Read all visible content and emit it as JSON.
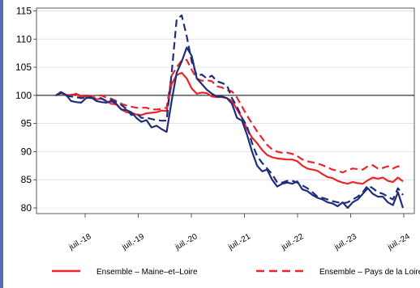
{
  "chart_data": {
    "type": "line",
    "title": "",
    "xlabel": "",
    "ylabel": "",
    "ylim": [
      79,
      115.5
    ],
    "yticks": [
      80,
      85,
      90,
      95,
      100,
      105,
      110,
      115
    ],
    "reference_line": 100,
    "xticks": [
      "juil.-18",
      "juil.-19",
      "juil.-20",
      "juil.-21",
      "juil.-22",
      "juil.-23",
      "juil.-24"
    ],
    "legend_placement": "bottom",
    "x_unit": "months since 2017-09 (monthly index)",
    "series": [
      {
        "name": "Ensemble - Maine-et-Loire",
        "color": "#e8262b",
        "style": "solid",
        "points": [
          [
            0,
            100
          ],
          [
            1,
            100.4
          ],
          [
            2,
            100.1
          ],
          [
            3,
            100.0
          ],
          [
            4,
            100.3
          ],
          [
            5,
            99.7
          ],
          [
            6,
            99.8
          ],
          [
            7,
            99.6
          ],
          [
            8,
            99.3
          ],
          [
            9,
            99.4
          ],
          [
            10,
            99.0
          ],
          [
            11,
            98.5
          ],
          [
            12,
            98.4
          ],
          [
            13,
            97.5
          ],
          [
            14,
            97.0
          ],
          [
            15,
            96.9
          ],
          [
            16,
            96.6
          ],
          [
            17,
            96.5
          ],
          [
            18,
            96.8
          ],
          [
            19,
            96.9
          ],
          [
            20,
            97.0
          ],
          [
            21,
            97.3
          ],
          [
            22,
            97.2
          ],
          [
            23,
            102.0
          ],
          [
            24,
            103.6
          ],
          [
            25,
            104.0
          ],
          [
            26,
            103.0
          ],
          [
            27,
            101.2
          ],
          [
            28,
            100.3
          ],
          [
            29,
            100.5
          ],
          [
            30,
            100.4
          ],
          [
            31,
            99.8
          ],
          [
            32,
            99.7
          ],
          [
            33,
            99.7
          ],
          [
            34,
            99.5
          ],
          [
            35,
            99.0
          ],
          [
            36,
            97.5
          ],
          [
            37,
            96.0
          ],
          [
            38,
            94.0
          ],
          [
            39,
            92.5
          ],
          [
            40,
            91.5
          ],
          [
            41,
            90.3
          ],
          [
            42,
            89.4
          ],
          [
            43,
            89.0
          ],
          [
            44,
            88.8
          ],
          [
            45,
            88.7
          ],
          [
            46,
            88.6
          ],
          [
            47,
            88.6
          ],
          [
            48,
            88.3
          ],
          [
            49,
            87.5
          ],
          [
            50,
            87.0
          ],
          [
            51,
            86.8
          ],
          [
            52,
            86.6
          ],
          [
            53,
            86.0
          ],
          [
            54,
            85.5
          ],
          [
            55,
            85.3
          ],
          [
            56,
            84.8
          ],
          [
            57,
            84.5
          ],
          [
            58,
            84.3
          ],
          [
            59,
            84.6
          ],
          [
            60,
            84.4
          ],
          [
            61,
            84.3
          ],
          [
            62,
            84.9
          ],
          [
            63,
            85.4
          ],
          [
            64,
            85.2
          ],
          [
            65,
            85.4
          ],
          [
            66,
            84.8
          ],
          [
            67,
            84.6
          ],
          [
            68,
            85.4
          ],
          [
            69,
            84.7
          ]
        ]
      },
      {
        "name": "Ensemble - Pays de la Loire",
        "color": "#e8262b",
        "style": "dashed",
        "points": [
          [
            0,
            100
          ],
          [
            1,
            100.5
          ],
          [
            2,
            100.0
          ],
          [
            3,
            100.1
          ],
          [
            4,
            100.3
          ],
          [
            5,
            99.9
          ],
          [
            6,
            100.0
          ],
          [
            7,
            99.9
          ],
          [
            8,
            99.9
          ],
          [
            9,
            100.0
          ],
          [
            10,
            99.6
          ],
          [
            11,
            99.4
          ],
          [
            12,
            99.0
          ],
          [
            13,
            98.5
          ],
          [
            14,
            98.2
          ],
          [
            15,
            98.0
          ],
          [
            16,
            97.8
          ],
          [
            17,
            97.8
          ],
          [
            18,
            97.8
          ],
          [
            19,
            97.5
          ],
          [
            20,
            97.5
          ],
          [
            21,
            97.6
          ],
          [
            22,
            97.8
          ],
          [
            23,
            103.5
          ],
          [
            24,
            105.0
          ],
          [
            25,
            106.2
          ],
          [
            26,
            106.3
          ],
          [
            27,
            104.5
          ],
          [
            28,
            103.0
          ],
          [
            29,
            102.6
          ],
          [
            30,
            102.7
          ],
          [
            31,
            102.5
          ],
          [
            32,
            101.6
          ],
          [
            33,
            101.4
          ],
          [
            34,
            100.9
          ],
          [
            35,
            100.7
          ],
          [
            36,
            99.6
          ],
          [
            37,
            98.0
          ],
          [
            38,
            96.4
          ],
          [
            39,
            95.0
          ],
          [
            40,
            93.6
          ],
          [
            41,
            92.4
          ],
          [
            42,
            91.2
          ],
          [
            43,
            90.4
          ],
          [
            44,
            90.0
          ],
          [
            45,
            89.8
          ],
          [
            46,
            89.8
          ],
          [
            47,
            89.6
          ],
          [
            48,
            89.2
          ],
          [
            49,
            88.6
          ],
          [
            50,
            88.3
          ],
          [
            51,
            88.1
          ],
          [
            52,
            87.9
          ],
          [
            53,
            87.6
          ],
          [
            54,
            87.2
          ],
          [
            55,
            86.8
          ],
          [
            56,
            86.6
          ],
          [
            57,
            86.3
          ],
          [
            58,
            86.7
          ],
          [
            59,
            87.0
          ],
          [
            60,
            86.9
          ],
          [
            61,
            86.8
          ],
          [
            62,
            87.4
          ],
          [
            63,
            87.6
          ],
          [
            64,
            87.0
          ],
          [
            65,
            87.1
          ],
          [
            66,
            87.4
          ],
          [
            67,
            87.0
          ],
          [
            68,
            87.4
          ],
          [
            69,
            87.2
          ]
        ]
      },
      {
        "name": "",
        "color": "#1f2e7a",
        "style": "solid",
        "points": [
          [
            0,
            100
          ],
          [
            1,
            100.6
          ],
          [
            2,
            100.1
          ],
          [
            3,
            99.0
          ],
          [
            4,
            98.8
          ],
          [
            5,
            98.7
          ],
          [
            6,
            99.5
          ],
          [
            7,
            99.7
          ],
          [
            8,
            99.0
          ],
          [
            9,
            98.8
          ],
          [
            10,
            98.7
          ],
          [
            11,
            99.0
          ],
          [
            12,
            98.5
          ],
          [
            13,
            97.5
          ],
          [
            14,
            97.4
          ],
          [
            15,
            97.0
          ],
          [
            16,
            96.0
          ],
          [
            17,
            95.3
          ],
          [
            18,
            95.6
          ],
          [
            19,
            94.3
          ],
          [
            20,
            94.6
          ],
          [
            21,
            94.0
          ],
          [
            22,
            93.5
          ],
          [
            23,
            99.0
          ],
          [
            24,
            104.0
          ],
          [
            25,
            106.0
          ],
          [
            26,
            108.5
          ],
          [
            27,
            107.0
          ],
          [
            28,
            103.0
          ],
          [
            29,
            102.0
          ],
          [
            30,
            101.0
          ],
          [
            31,
            100.3
          ],
          [
            32,
            99.8
          ],
          [
            33,
            99.8
          ],
          [
            34,
            99.5
          ],
          [
            35,
            98.5
          ],
          [
            36,
            96.0
          ],
          [
            37,
            95.5
          ],
          [
            38,
            93.0
          ],
          [
            39,
            90.0
          ],
          [
            40,
            87.5
          ],
          [
            41,
            86.5
          ],
          [
            42,
            86.8
          ],
          [
            43,
            85.0
          ],
          [
            44,
            83.8
          ],
          [
            45,
            84.3
          ],
          [
            46,
            84.5
          ],
          [
            47,
            84.3
          ],
          [
            48,
            84.7
          ],
          [
            49,
            83.3
          ],
          [
            50,
            83.0
          ],
          [
            51,
            82.3
          ],
          [
            52,
            81.8
          ],
          [
            53,
            81.5
          ],
          [
            54,
            81.0
          ],
          [
            55,
            80.8
          ],
          [
            56,
            80.3
          ],
          [
            57,
            81.0
          ],
          [
            58,
            80.0
          ],
          [
            59,
            81.0
          ],
          [
            60,
            81.5
          ],
          [
            61,
            82.5
          ],
          [
            62,
            83.5
          ],
          [
            63,
            82.5
          ],
          [
            64,
            82.0
          ],
          [
            65,
            82.0
          ],
          [
            66,
            81.0
          ],
          [
            67,
            80.5
          ],
          [
            68,
            82.8
          ],
          [
            69,
            80.0
          ]
        ]
      },
      {
        "name": "",
        "color": "#1f2e7a",
        "style": "dashed",
        "points": [
          [
            0,
            100
          ],
          [
            1,
            100.5
          ],
          [
            2,
            100.0
          ],
          [
            3,
            99.8
          ],
          [
            4,
            99.7
          ],
          [
            5,
            99.5
          ],
          [
            6,
            99.6
          ],
          [
            7,
            99.5
          ],
          [
            8,
            99.5
          ],
          [
            9,
            99.5
          ],
          [
            10,
            99.0
          ],
          [
            11,
            99.2
          ],
          [
            12,
            98.8
          ],
          [
            13,
            98.3
          ],
          [
            14,
            97.6
          ],
          [
            15,
            96.5
          ],
          [
            16,
            96.8
          ],
          [
            17,
            96.0
          ],
          [
            18,
            96.0
          ],
          [
            19,
            95.8
          ],
          [
            20,
            95.6
          ],
          [
            21,
            95.5
          ],
          [
            22,
            95.5
          ],
          [
            23,
            104.0
          ],
          [
            24,
            113.5
          ],
          [
            25,
            114.2
          ],
          [
            26,
            110.5
          ],
          [
            27,
            106.0
          ],
          [
            28,
            103.5
          ],
          [
            29,
            103.7
          ],
          [
            30,
            103.0
          ],
          [
            31,
            103.5
          ],
          [
            32,
            102.5
          ],
          [
            33,
            102.2
          ],
          [
            34,
            101.8
          ],
          [
            35,
            99.5
          ],
          [
            36,
            98.0
          ],
          [
            37,
            96.0
          ],
          [
            38,
            94.5
          ],
          [
            39,
            91.5
          ],
          [
            40,
            89.2
          ],
          [
            41,
            88.0
          ],
          [
            42,
            87.0
          ],
          [
            43,
            86.0
          ],
          [
            44,
            84.5
          ],
          [
            45,
            84.5
          ],
          [
            46,
            84.8
          ],
          [
            47,
            84.8
          ],
          [
            48,
            84.5
          ],
          [
            49,
            84.0
          ],
          [
            50,
            83.5
          ],
          [
            51,
            82.8
          ],
          [
            52,
            82.0
          ],
          [
            53,
            81.8
          ],
          [
            54,
            81.5
          ],
          [
            55,
            81.2
          ],
          [
            56,
            81.0
          ],
          [
            57,
            80.8
          ],
          [
            58,
            81.0
          ],
          [
            59,
            81.5
          ],
          [
            60,
            82.0
          ],
          [
            61,
            82.8
          ],
          [
            62,
            84.0
          ],
          [
            63,
            83.5
          ],
          [
            64,
            82.8
          ],
          [
            65,
            82.5
          ],
          [
            66,
            82.0
          ],
          [
            67,
            81.5
          ],
          [
            68,
            83.5
          ],
          [
            69,
            82.3
          ]
        ]
      }
    ]
  },
  "legend": {
    "item1": "Ensemble – Maine–et–Loire",
    "item2": "Ensemble – Pays de la Loire"
  }
}
